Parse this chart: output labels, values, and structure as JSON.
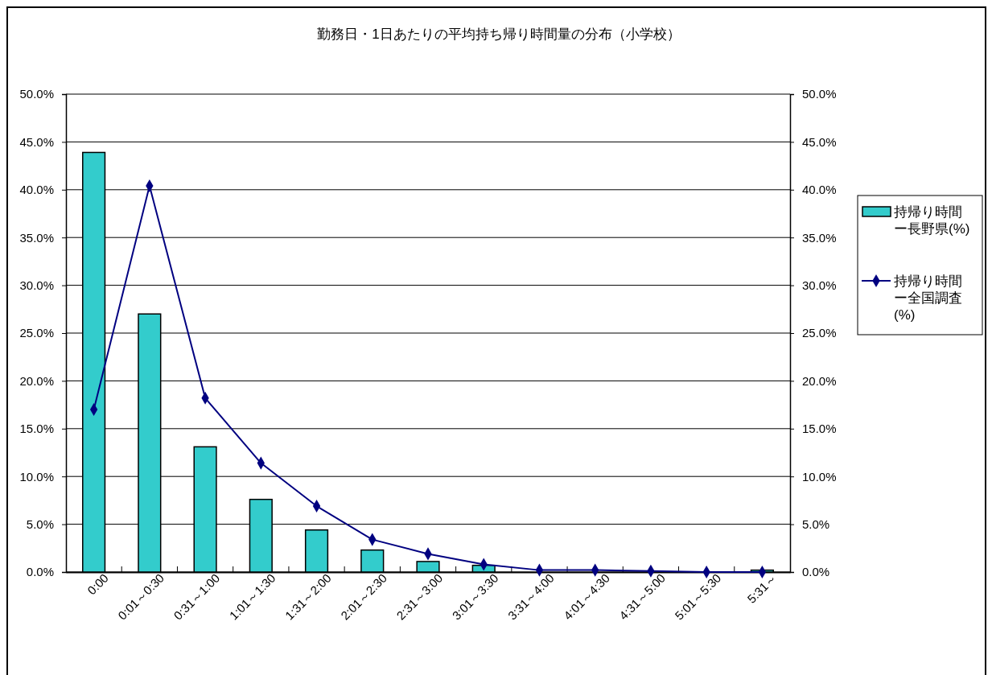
{
  "chart_data": {
    "type": "bar",
    "title": "勤務日・1日あたりの平均持ち帰り時間量の分布（小学校）",
    "categories": [
      "0:00",
      "0:01～0:30",
      "0:31～1:00",
      "1:01～1:30",
      "1:31～2:00",
      "2:01～2:30",
      "2:31～3:00",
      "3:01～3:30",
      "3:31～4:00",
      "4:01～4:30",
      "4:31～5:00",
      "5:01～5:30",
      "5:31～"
    ],
    "series": [
      {
        "name": "持帰り時間ー長野県(%)",
        "color": "#33cccc",
        "values": [
          43.9,
          27.0,
          13.1,
          7.6,
          4.4,
          2.3,
          1.1,
          0.7,
          0.0,
          0.0,
          0.0,
          0.0,
          0.2
        ]
      },
      {
        "name": "持帰り時間ー全国調査(%)",
        "type": "line",
        "color": "#000080",
        "values": [
          17.0,
          40.4,
          18.2,
          11.4,
          6.9,
          3.4,
          1.9,
          0.8,
          0.2,
          0.2,
          0.1,
          0.0,
          0.0
        ]
      }
    ],
    "ylim": [
      0,
      50
    ],
    "yticks": [
      {
        "value": 0,
        "label": "0.0%"
      },
      {
        "value": 5,
        "label": "5.0%"
      },
      {
        "value": 10,
        "label": "10.0%"
      },
      {
        "value": 15,
        "label": "15.0%"
      },
      {
        "value": 20,
        "label": "20.0%"
      },
      {
        "value": 25,
        "label": "25.0%"
      },
      {
        "value": 30,
        "label": "30.0%"
      },
      {
        "value": 35,
        "label": "35.0%"
      },
      {
        "value": 40,
        "label": "40.0%"
      },
      {
        "value": 45,
        "label": "45.0%"
      },
      {
        "value": 50,
        "label": "50.0%"
      }
    ],
    "y2lim": [
      0,
      50
    ],
    "y2ticks": [
      {
        "value": 0,
        "label": "0.0%"
      },
      {
        "value": 5,
        "label": "5.0%"
      },
      {
        "value": 10,
        "label": "10.0%"
      },
      {
        "value": 15,
        "label": "15.0%"
      },
      {
        "value": 20,
        "label": "20.0%"
      },
      {
        "value": 25,
        "label": "25.0%"
      },
      {
        "value": 30,
        "label": "30.0%"
      },
      {
        "value": 35,
        "label": "35.0%"
      },
      {
        "value": 40,
        "label": "40.0%"
      },
      {
        "value": 45,
        "label": "45.0%"
      },
      {
        "value": 50,
        "label": "50.0%"
      }
    ],
    "grid": "y",
    "legend": "right",
    "marker": "diamond",
    "line_style": "solid"
  }
}
